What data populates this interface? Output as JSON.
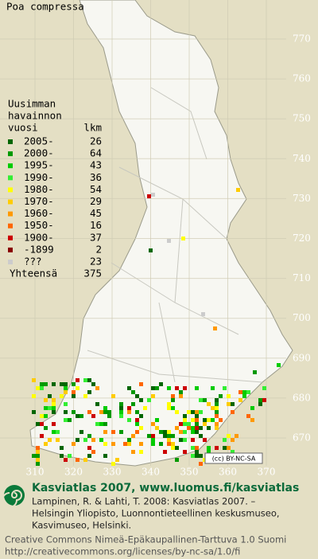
{
  "title": "Poa compressa",
  "legend": {
    "heading": [
      "Uusimman",
      "havainnon",
      "vuosi"
    ],
    "count_heading": "lkm",
    "items": [
      {
        "label": "2005-",
        "count": 26,
        "color": "#006600"
      },
      {
        "label": "2000-",
        "count": 64,
        "color": "#009900"
      },
      {
        "label": "1995-",
        "count": 43,
        "color": "#00cc00"
      },
      {
        "label": "1990-",
        "count": 36,
        "color": "#33ee33"
      },
      {
        "label": "1980-",
        "count": 54,
        "color": "#ffff00"
      },
      {
        "label": "1970-",
        "count": 29,
        "color": "#ffcc00"
      },
      {
        "label": "1960-",
        "count": 45,
        "color": "#ff9900"
      },
      {
        "label": "1950-",
        "count": 16,
        "color": "#ff6600"
      },
      {
        "label": "1900-",
        "count": 37,
        "color": "#cc0000"
      },
      {
        "label": "-1899",
        "count": 2,
        "color": "#880000"
      },
      {
        "label": "???",
        "count": 23,
        "color": "#cccccc"
      }
    ],
    "total_label": "Yhteensä",
    "total": 375
  },
  "grid": {
    "north": [
      770,
      760,
      750,
      740,
      730,
      720,
      710,
      700,
      690,
      680,
      670
    ],
    "east": [
      310,
      320,
      330,
      340,
      350,
      360,
      370
    ]
  },
  "license_badge": "(cc) BY-NC-SA",
  "footer": {
    "site": "Kasviatlas 2007, www.luomus.fi/kasviatlas",
    "citation": [
      "Lampinen, R. & Lahti, T. 2008: Kasviatlas 2007. –",
      "Helsingin Yliopisto, Luonnontieteellinen keskusmuseo,",
      "Kasvimuseo, Helsinki."
    ],
    "license": [
      "Creative Commons Nimeä-Epäkaupallinen-Tarttuva 1.0 Suomi",
      "http://creativecommons.org/licenses/by-nc-sa/1.0/fi"
    ]
  }
}
